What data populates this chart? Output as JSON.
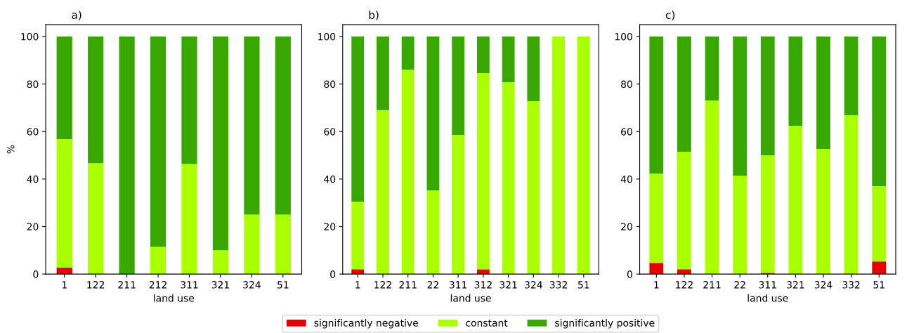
{
  "chart_data": [
    {
      "type": "bar",
      "stacked": true,
      "title": "a)",
      "xlabel": "land use",
      "ylabel": "%",
      "categories": [
        "1",
        "122",
        "211",
        "212",
        "311",
        "321",
        "324",
        "51"
      ],
      "ylim": [
        0,
        105
      ],
      "yticks": [
        0,
        20,
        40,
        60,
        80,
        100
      ],
      "grid": false,
      "series": [
        {
          "color": "#e60000",
          "values": [
            2.7,
            0,
            0,
            0,
            0,
            0,
            0,
            0
          ]
        },
        {
          "color": "#aaff00",
          "values": [
            54.1,
            46.7,
            0,
            11.5,
            46.4,
            10,
            25,
            25
          ]
        },
        {
          "color": "#38a800",
          "values": [
            43.2,
            53.3,
            100,
            88.5,
            53.6,
            90,
            75,
            75
          ]
        }
      ]
    },
    {
      "type": "bar",
      "stacked": true,
      "title": "b)",
      "xlabel": "land use",
      "categories": [
        "1",
        "122",
        "211",
        "22",
        "311",
        "312",
        "321",
        "324",
        "332",
        "51"
      ],
      "ylim": [
        0,
        105
      ],
      "yticks": [
        0,
        20,
        40,
        60,
        80,
        100
      ],
      "grid": false,
      "legend": "bottom",
      "series": [
        {
          "name": "significantly negative",
          "color": "#e60000",
          "values": [
            2,
            0,
            0,
            0,
            0,
            2,
            0,
            0,
            0,
            0
          ]
        },
        {
          "name": "constant",
          "color": "#aaff00",
          "values": [
            28.5,
            69,
            86,
            35.2,
            58.6,
            82.6,
            80.8,
            72.8,
            100,
            100
          ]
        },
        {
          "name": "significantly positive",
          "color": "#38a800",
          "values": [
            69.5,
            31,
            14,
            64.8,
            41.4,
            15.4,
            19.2,
            27.2,
            0,
            0
          ]
        }
      ]
    },
    {
      "type": "bar",
      "stacked": true,
      "title": "c)",
      "xlabel": "land use",
      "categories": [
        "1",
        "122",
        "211",
        "22",
        "311",
        "321",
        "324",
        "332",
        "51"
      ],
      "ylim": [
        0,
        105
      ],
      "yticks": [
        0,
        20,
        40,
        60,
        80,
        100
      ],
      "grid": false,
      "series": [
        {
          "color": "#e60000",
          "values": [
            4.7,
            2,
            0,
            0,
            0.5,
            0,
            0,
            0,
            5.3
          ]
        },
        {
          "color": "#aaff00",
          "values": [
            37.6,
            49.5,
            73.1,
            41.4,
            49.5,
            62.4,
            52.7,
            66.9,
            31.7
          ]
        },
        {
          "color": "#38a800",
          "values": [
            57.7,
            48.5,
            26.9,
            58.6,
            50,
            37.6,
            47.3,
            33.1,
            63
          ]
        }
      ]
    }
  ]
}
